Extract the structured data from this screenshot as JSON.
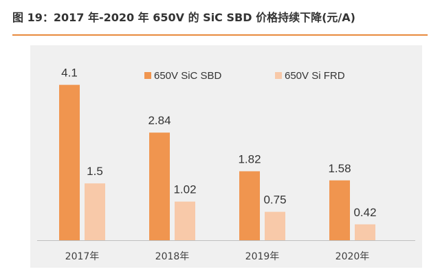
{
  "figure_title": "图 19：2017 年-2020 年 650V 的 SiC SBD 价格持续下降(元/A)",
  "colors": {
    "accent_rule": "#E8893C",
    "panel_bg": "#F0F0F0",
    "sic_sbd": "#F0954F",
    "si_frd": "#F8C9A9",
    "text": "#333333"
  },
  "chart_data": {
    "type": "bar",
    "title": "",
    "xlabel": "",
    "ylabel": "",
    "categories": [
      "2017年",
      "2018年",
      "2019年",
      "2020年"
    ],
    "series": [
      {
        "name": "650V SiC SBD",
        "values": [
          4.1,
          2.84,
          1.82,
          1.58
        ]
      },
      {
        "name": "650V Si FRD",
        "values": [
          1.5,
          1.02,
          0.75,
          0.42
        ]
      }
    ],
    "data_labels": [
      [
        "4.1",
        "2.84",
        "1.82",
        "1.58"
      ],
      [
        "1.5",
        "1.02",
        "0.75",
        "0.42"
      ]
    ],
    "ylim": [
      0,
      4.6
    ],
    "grid": false,
    "legend_position": "top-right"
  }
}
